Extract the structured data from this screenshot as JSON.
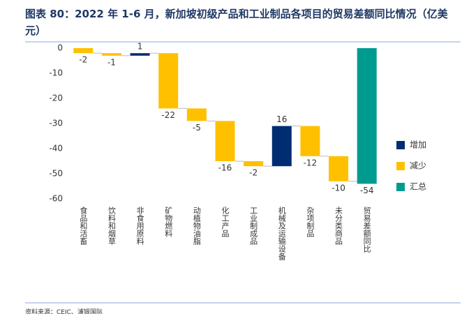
{
  "chart_data": {
    "type": "waterfall",
    "title": "图表 80：2022 年 1-6 月，新加坡初级产品和工业制品各项目的贸易差额同比情况（亿美元）",
    "source": "资料来源：CEIC、浦银国际",
    "categories": [
      "食品和活畜",
      "饮料和烟草",
      "非食用原料",
      "矿物燃料",
      "动植物油脂",
      "化工产品",
      "工业制成品",
      "机械及运输设备",
      "杂项制品",
      "未分类商品",
      "贸易差额同比"
    ],
    "series": [
      {
        "name": "增加",
        "color": "#002d72",
        "values": [
          null,
          null,
          1,
          null,
          null,
          null,
          null,
          16,
          null,
          null,
          null
        ]
      },
      {
        "name": "减少",
        "color": "#ffc000",
        "values": [
          -2,
          -1,
          null,
          -22,
          -5,
          -16,
          -2,
          null,
          -12,
          -10,
          null
        ]
      },
      {
        "name": "汇总",
        "color": "#009b8f",
        "values": [
          null,
          null,
          null,
          null,
          null,
          null,
          null,
          null,
          null,
          null,
          -54
        ]
      }
    ],
    "ylim": [
      -60,
      0
    ],
    "yticks": [
      0,
      -10,
      -20,
      -30,
      -40,
      -50,
      -60
    ],
    "grid": false,
    "legend": "right"
  }
}
